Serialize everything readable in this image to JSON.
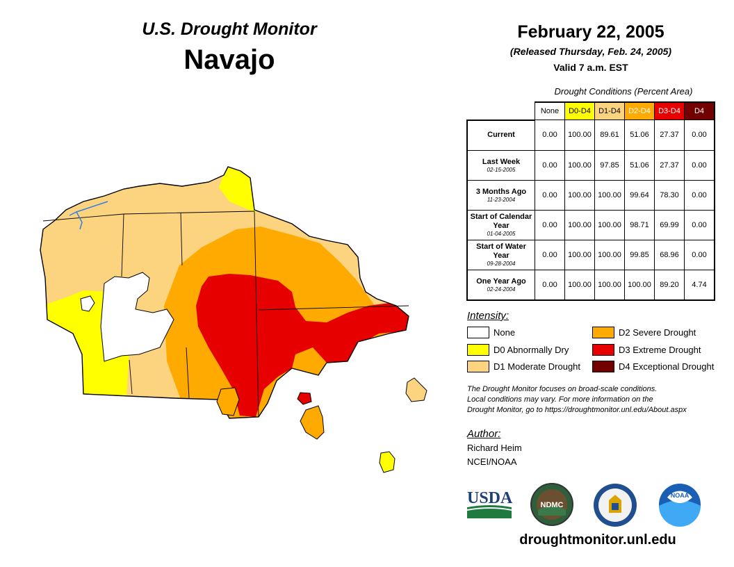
{
  "header": {
    "title": "U.S. Drought Monitor",
    "region": "Navajo",
    "date": "February 22, 2005",
    "released": "(Released Thursday, Feb. 24, 2005)",
    "valid": "Valid 7 a.m. EST"
  },
  "table": {
    "caption": "Drought Conditions (Percent Area)",
    "columns": [
      {
        "label": "None",
        "color": "#ffffff",
        "text_color": "#000000"
      },
      {
        "label": "D0-D4",
        "color": "#ffff00",
        "text_color": "#000000"
      },
      {
        "label": "D1-D4",
        "color": "#fcd37f",
        "text_color": "#000000"
      },
      {
        "label": "D2-D4",
        "color": "#ffaa00",
        "text_color": "#ffffff"
      },
      {
        "label": "D3-D4",
        "color": "#e60000",
        "text_color": "#ffffff"
      },
      {
        "label": "D4",
        "color": "#730000",
        "text_color": "#ffffff"
      }
    ],
    "rows": [
      {
        "label": "Current",
        "date": "",
        "values": [
          "0.00",
          "100.00",
          "89.61",
          "51.06",
          "27.37",
          "0.00"
        ]
      },
      {
        "label": "Last Week",
        "date": "02-15-2005",
        "values": [
          "0.00",
          "100.00",
          "97.85",
          "51.06",
          "27.37",
          "0.00"
        ]
      },
      {
        "label": "3 Months Ago",
        "date": "11-23-2004",
        "values": [
          "0.00",
          "100.00",
          "100.00",
          "99.64",
          "78.30",
          "0.00"
        ]
      },
      {
        "label": "Start of Calendar Year",
        "date": "01-04-2005",
        "values": [
          "0.00",
          "100.00",
          "100.00",
          "98.71",
          "69.99",
          "0.00"
        ]
      },
      {
        "label": "Start of Water Year",
        "date": "09-28-2004",
        "values": [
          "0.00",
          "100.00",
          "100.00",
          "99.85",
          "68.96",
          "0.00"
        ]
      },
      {
        "label": "One Year Ago",
        "date": "02-24-2004",
        "values": [
          "0.00",
          "100.00",
          "100.00",
          "100.00",
          "89.20",
          "4.74"
        ]
      }
    ]
  },
  "legend": {
    "title": "Intensity:",
    "items": [
      {
        "label": "None",
        "color": "#ffffff"
      },
      {
        "label": "D0 Abnormally Dry",
        "color": "#ffff00"
      },
      {
        "label": "D1 Moderate Drought",
        "color": "#fcd37f"
      },
      {
        "label": "D2 Severe Drought",
        "color": "#ffaa00"
      },
      {
        "label": "D3 Extreme Drought",
        "color": "#e60000"
      },
      {
        "label": "D4 Exceptional Drought",
        "color": "#730000"
      }
    ]
  },
  "note": {
    "line1": "The Drought Monitor focuses on broad-scale conditions.",
    "line2": "Local conditions may vary. For more information on the",
    "line3": "Drought Monitor, go to https://droughtmonitor.unl.edu/About.aspx"
  },
  "author": {
    "title": "Author:",
    "name": "Richard Heim",
    "org": "NCEI/NOAA"
  },
  "logos": {
    "usda": "USDA",
    "ndmc": "NDMC",
    "noaa": "NOAA"
  },
  "website": "droughtmonitor.unl.edu"
}
